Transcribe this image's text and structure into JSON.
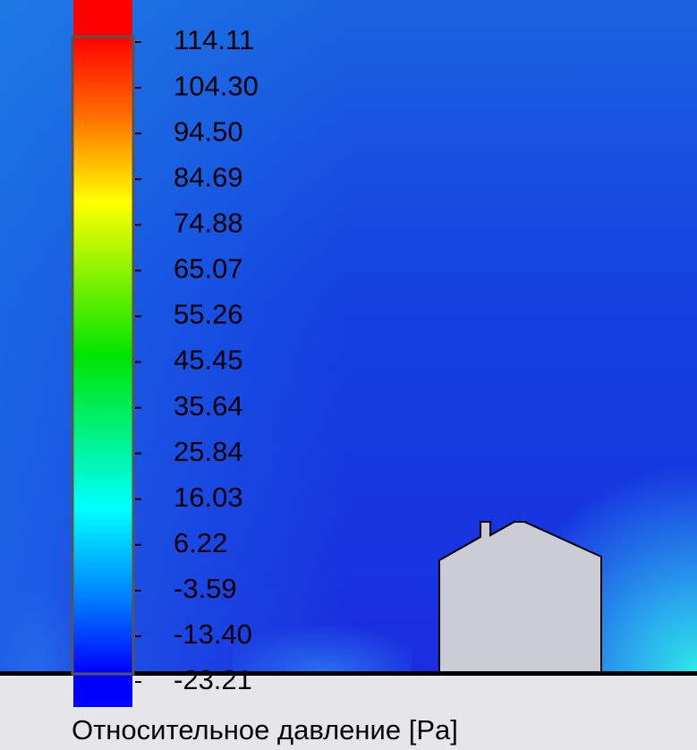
{
  "legend": {
    "ticks": [
      "114.11",
      "104.30",
      "94.50",
      "84.69",
      "74.88",
      "65.07",
      "55.26",
      "45.45",
      "35.64",
      "25.84",
      "16.03",
      "6.22",
      "-3.59",
      "-13.40",
      "-23.21"
    ],
    "title": "Относительное давление [Pa]"
  }
}
